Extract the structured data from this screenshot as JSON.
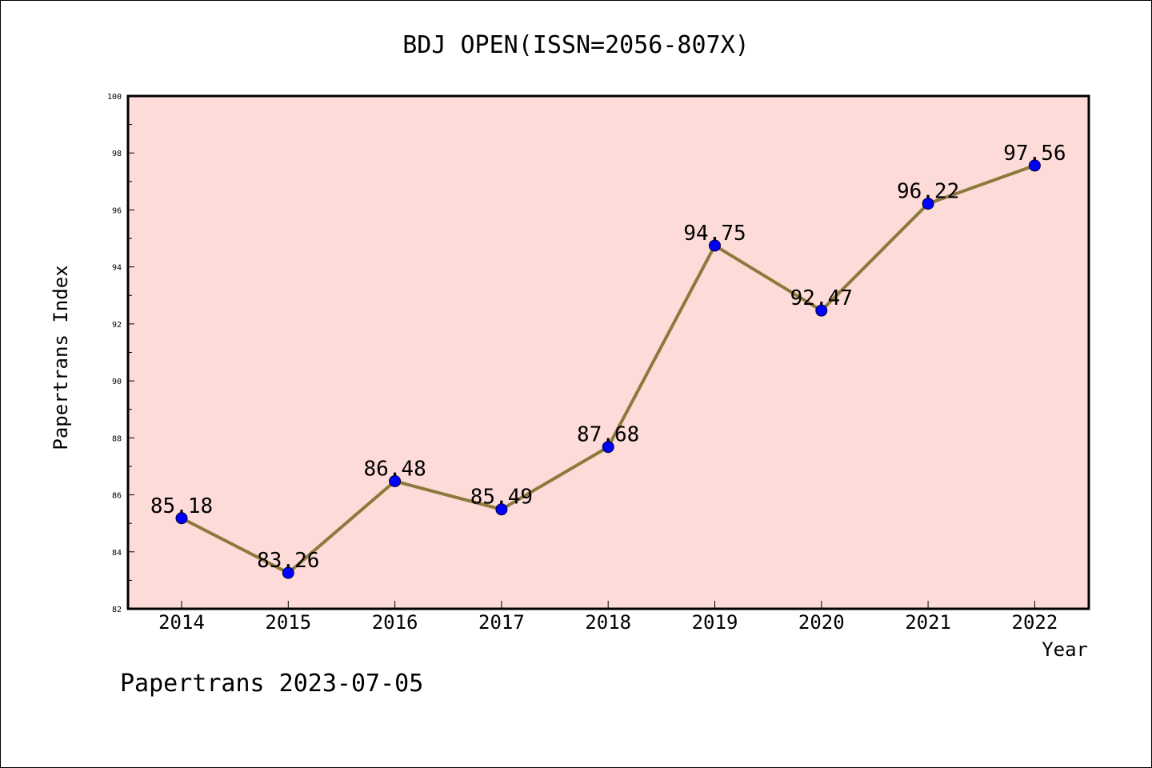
{
  "chart_data": {
    "type": "line",
    "title": "BDJ OPEN(ISSN=2056-807X)",
    "xlabel": "Year",
    "ylabel": "Papertrans Index",
    "categories": [
      "2014",
      "2015",
      "2016",
      "2017",
      "2018",
      "2019",
      "2020",
      "2021",
      "2022"
    ],
    "series": [
      {
        "values": [
          85.18,
          83.26,
          86.48,
          85.49,
          87.68,
          94.75,
          92.47,
          96.22,
          97.56
        ],
        "labels": [
          "85.18",
          "83.26",
          "86.48",
          "85.49",
          "87.68",
          "94.75",
          "92.47",
          "96.22",
          "97.56"
        ]
      }
    ],
    "ylim": [
      82,
      100
    ],
    "yticks": [
      82,
      84,
      86,
      88,
      90,
      92,
      94,
      96,
      98,
      100
    ],
    "ytick_labels": [
      "82",
      "84",
      "86",
      "88",
      "90",
      "92",
      "94",
      "96",
      "98",
      "100"
    ],
    "grid": false,
    "colors": {
      "plot_background": "#fddbd8",
      "line": "#8c7a3c",
      "marker": "#0000ff"
    }
  },
  "footer": "Papertrans 2023-07-05"
}
